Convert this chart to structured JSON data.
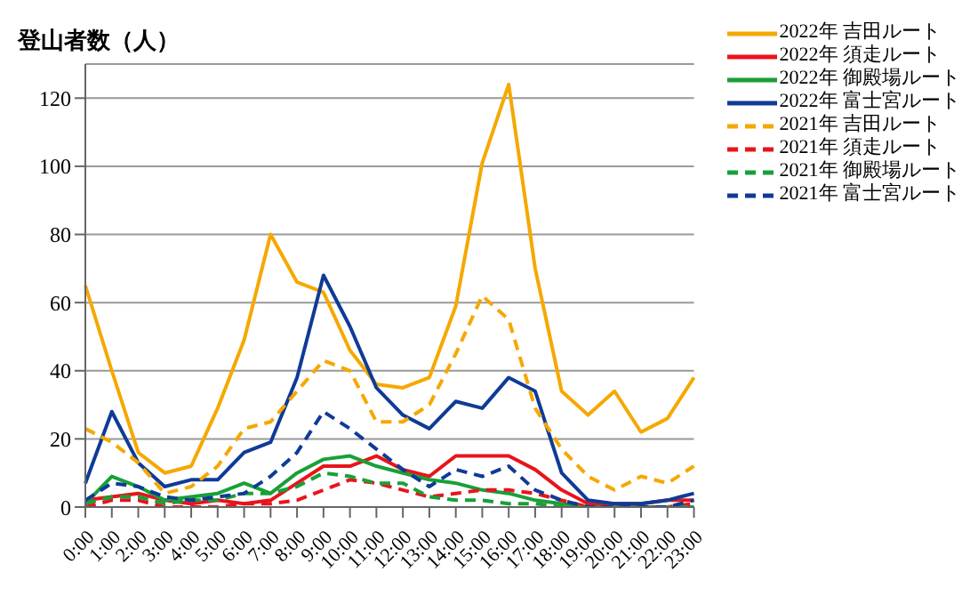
{
  "chart_data": {
    "type": "line",
    "ylabel": "登山者数（人）",
    "categories": [
      "0:00",
      "1:00",
      "2:00",
      "3:00",
      "4:00",
      "5:00",
      "6:00",
      "7:00",
      "8:00",
      "9:00",
      "10:00",
      "11:00",
      "12:00",
      "13:00",
      "14:00",
      "15:00",
      "16:00",
      "17:00",
      "18:00",
      "19:00",
      "20:00",
      "21:00",
      "22:00",
      "23:00"
    ],
    "ylim": [
      0,
      130
    ],
    "yticks": [
      0,
      20,
      40,
      60,
      80,
      100,
      120
    ],
    "grid": "y",
    "legend": "top right",
    "marker": "none",
    "series": [
      {
        "name": "2022年 吉田ルート",
        "color": "#f5a800",
        "line_style": "solid",
        "values": [
          65,
          40,
          16,
          10,
          12,
          29,
          49,
          80,
          66,
          63,
          46,
          36,
          35,
          38,
          59,
          101,
          124,
          70,
          34,
          27,
          34,
          22,
          26,
          38
        ]
      },
      {
        "name": "2022年 須走ルート",
        "color": "#e8141c",
        "line_style": "solid",
        "values": [
          2,
          3,
          4,
          2,
          1,
          2,
          1,
          2,
          7,
          12,
          12,
          15,
          11,
          9,
          15,
          15,
          15,
          11,
          5,
          1,
          1,
          1,
          2,
          2
        ]
      },
      {
        "name": "2022年 御殿場ルート",
        "color": "#18a038",
        "line_style": "solid",
        "values": [
          1,
          9,
          6,
          2,
          3,
          4,
          7,
          4,
          10,
          14,
          15,
          12,
          10,
          8,
          7,
          5,
          4,
          2,
          1,
          0,
          0,
          0,
          0,
          0
        ]
      },
      {
        "name": "2022年 富士宮ルート",
        "color": "#0f3b96",
        "line_style": "solid",
        "values": [
          7,
          28,
          13,
          6,
          8,
          8,
          16,
          19,
          38,
          68,
          53,
          35,
          27,
          23,
          31,
          29,
          38,
          34,
          10,
          2,
          1,
          1,
          2,
          4
        ]
      },
      {
        "name": "2021年 吉田ルート",
        "color": "#f5a800",
        "line_style": "dashed",
        "values": [
          23,
          19,
          13,
          4,
          6,
          12,
          23,
          25,
          34,
          43,
          40,
          25,
          25,
          30,
          45,
          62,
          55,
          29,
          17,
          9,
          5,
          9,
          7,
          12
        ]
      },
      {
        "name": "2021年 須走ルート",
        "color": "#e8141c",
        "line_style": "dashed",
        "values": [
          0,
          2,
          2,
          0,
          0,
          0,
          1,
          1,
          2,
          5,
          8,
          7,
          5,
          3,
          4,
          5,
          5,
          4,
          2,
          0,
          0,
          0,
          0,
          1
        ]
      },
      {
        "name": "2021年 御殿場ルート",
        "color": "#18a038",
        "line_style": "dashed",
        "values": [
          1,
          3,
          3,
          1,
          2,
          2,
          4,
          4,
          6,
          10,
          9,
          7,
          7,
          3,
          2,
          2,
          1,
          1,
          0,
          0,
          0,
          0,
          0,
          0
        ]
      },
      {
        "name": "2021年 富士宮ルート",
        "color": "#0f3b96",
        "line_style": "dashed",
        "values": [
          2,
          7,
          6,
          3,
          2,
          3,
          4,
          9,
          16,
          28,
          23,
          17,
          11,
          6,
          11,
          9,
          12,
          5,
          2,
          0,
          0,
          0,
          0,
          2
        ]
      }
    ]
  }
}
